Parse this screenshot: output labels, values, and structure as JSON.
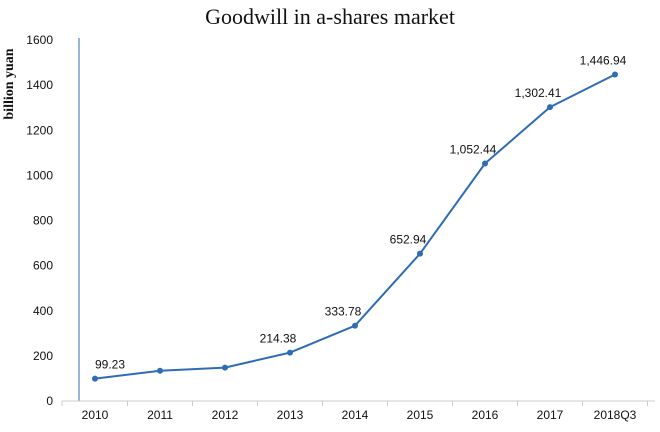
{
  "chart_data": {
    "type": "line",
    "title": "Goodwill in a-shares market",
    "xlabel": "",
    "ylabel": "billion yuan",
    "categories": [
      "2010",
      "2011",
      "2012",
      "2013",
      "2014",
      "2015",
      "2016",
      "2017",
      "2018Q3"
    ],
    "series": [
      {
        "values": [
          99.23,
          134,
          148,
          214.38,
          333.78,
          652.94,
          1052.44,
          1302.41,
          1446.94
        ],
        "data_labels": [
          "99.23",
          "",
          "",
          "214.38",
          "333.78",
          "652.94",
          "1,052.44",
          "1,302.41",
          "1,446.94"
        ]
      }
    ],
    "ylim": [
      0,
      1600
    ],
    "yticks": [
      0,
      200,
      400,
      600,
      800,
      1000,
      1200,
      1400,
      1600
    ],
    "grid": false,
    "legend": "none",
    "colors": {
      "line": "#2e6db4",
      "axis": "#2e6db4",
      "text": "#111111"
    }
  }
}
